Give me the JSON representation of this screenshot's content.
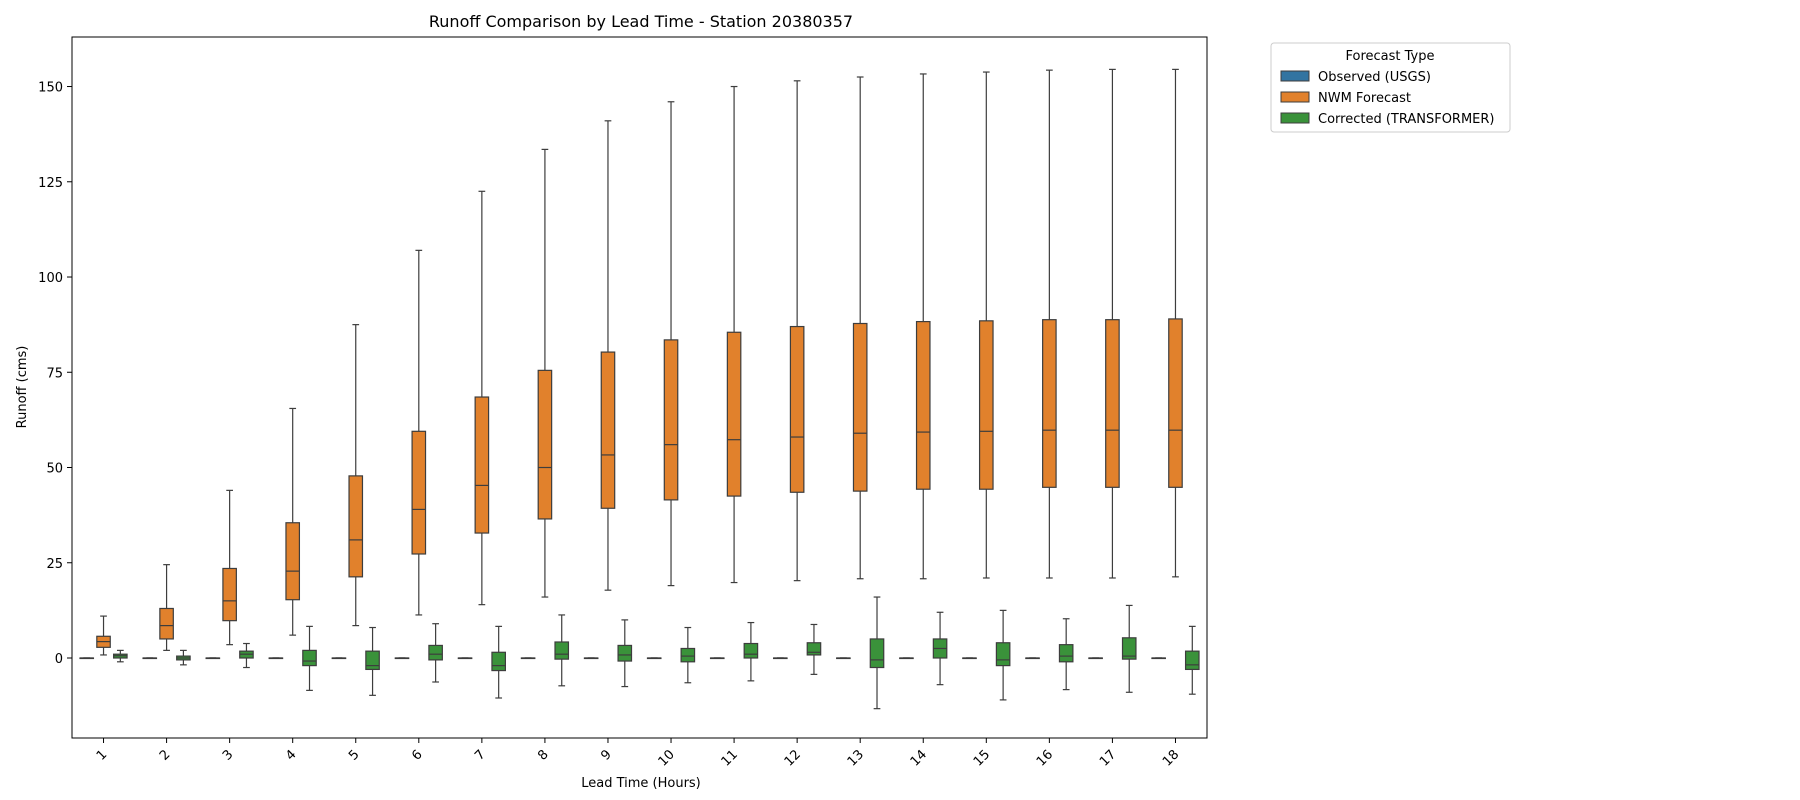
{
  "chart_data": {
    "type": "box",
    "title": "Runoff Comparison by Lead Time - Station 20380357",
    "xlabel": "Lead Time (Hours)",
    "ylabel": "Runoff (cms)",
    "ylim": [
      -21,
      163
    ],
    "yticks": [
      0,
      25,
      50,
      75,
      100,
      125,
      150
    ],
    "categories": [
      "1",
      "2",
      "3",
      "4",
      "5",
      "6",
      "7",
      "8",
      "9",
      "10",
      "11",
      "12",
      "13",
      "14",
      "15",
      "16",
      "17",
      "18"
    ],
    "grid": false,
    "legend": {
      "title": "Forecast Type",
      "placement": "outside-top-right"
    },
    "series": [
      {
        "name": "Observed (USGS)",
        "color": "#3274a1",
        "boxes": [
          [
            0,
            0,
            0,
            0,
            0
          ],
          [
            0,
            0,
            0,
            0,
            0
          ],
          [
            0,
            0,
            0,
            0,
            0
          ],
          [
            0,
            0,
            0,
            0,
            0
          ],
          [
            0,
            0,
            0,
            0,
            0
          ],
          [
            0,
            0,
            0,
            0,
            0
          ],
          [
            0,
            0,
            0,
            0,
            0
          ],
          [
            0,
            0,
            0,
            0,
            0
          ],
          [
            0,
            0,
            0,
            0,
            0
          ],
          [
            0,
            0,
            0,
            0,
            0
          ],
          [
            0,
            0,
            0,
            0,
            0
          ],
          [
            0,
            0,
            0,
            0,
            0
          ],
          [
            0,
            0,
            0,
            0,
            0
          ],
          [
            0,
            0,
            0,
            0,
            0
          ],
          [
            0,
            0,
            0,
            0,
            0
          ],
          [
            0,
            0,
            0,
            0,
            0
          ],
          [
            0,
            0,
            0,
            0,
            0
          ],
          [
            0,
            0,
            0,
            0,
            0
          ]
        ]
      },
      {
        "name": "NWM Forecast",
        "color": "#e1812c",
        "boxes": [
          [
            0.8,
            2.8,
            4.3,
            5.7,
            11
          ],
          [
            2,
            5,
            8.5,
            13,
            24.5
          ],
          [
            3.5,
            9.8,
            15,
            23.5,
            44
          ],
          [
            6,
            15.3,
            22.8,
            35.5,
            65.5
          ],
          [
            8.5,
            21.3,
            31,
            47.8,
            87.5
          ],
          [
            11.3,
            27.3,
            39,
            59.5,
            107
          ],
          [
            14,
            32.8,
            45.3,
            68.5,
            122.5
          ],
          [
            16,
            36.5,
            50,
            75.5,
            133.5
          ],
          [
            17.8,
            39.3,
            53.3,
            80.3,
            141
          ],
          [
            19,
            41.5,
            56,
            83.5,
            146
          ],
          [
            19.8,
            42.5,
            57.3,
            85.5,
            150
          ],
          [
            20.3,
            43.5,
            58,
            87,
            151.5
          ],
          [
            20.8,
            43.8,
            59,
            87.8,
            152.5
          ],
          [
            20.8,
            44.3,
            59.3,
            88.3,
            153.3
          ],
          [
            21,
            44.3,
            59.5,
            88.5,
            153.8
          ],
          [
            21,
            44.8,
            59.8,
            88.8,
            154.3
          ],
          [
            21,
            44.8,
            59.8,
            88.8,
            154.5
          ],
          [
            21.3,
            44.8,
            59.8,
            89,
            154.5
          ]
        ]
      },
      {
        "name": "Corrected (TRANSFORMER)",
        "color": "#3a923a",
        "boxes": [
          [
            -1,
            0,
            0.6,
            1,
            2
          ],
          [
            -1.8,
            -0.5,
            0,
            0.5,
            2
          ],
          [
            -2.5,
            0,
            1,
            1.8,
            3.8
          ],
          [
            -8.5,
            -2,
            -0.8,
            2,
            8.3
          ],
          [
            -9.8,
            -3,
            -2,
            1.8,
            8
          ],
          [
            -6.3,
            -0.5,
            1,
            3.3,
            9
          ],
          [
            -10.5,
            -3.3,
            -2,
            1.5,
            8.3
          ],
          [
            -7.3,
            -0.3,
            1,
            4.2,
            11.3
          ],
          [
            -7.5,
            -0.8,
            0.8,
            3.3,
            10
          ],
          [
            -6.5,
            -1,
            0.5,
            2.5,
            8
          ],
          [
            -6,
            0,
            1,
            3.8,
            9.3
          ],
          [
            -4.3,
            0.8,
            1.5,
            4,
            8.8
          ],
          [
            -13.3,
            -2.5,
            -0.5,
            5,
            16
          ],
          [
            -7,
            0,
            2.5,
            5,
            12
          ],
          [
            -11,
            -2,
            -0.5,
            4,
            12.5
          ],
          [
            -8.3,
            -1,
            0.5,
            3.5,
            10.3
          ],
          [
            -9,
            -0.3,
            0.5,
            5.3,
            13.8
          ],
          [
            -9.5,
            -3,
            -1.8,
            1.8,
            8.3
          ]
        ]
      }
    ]
  }
}
